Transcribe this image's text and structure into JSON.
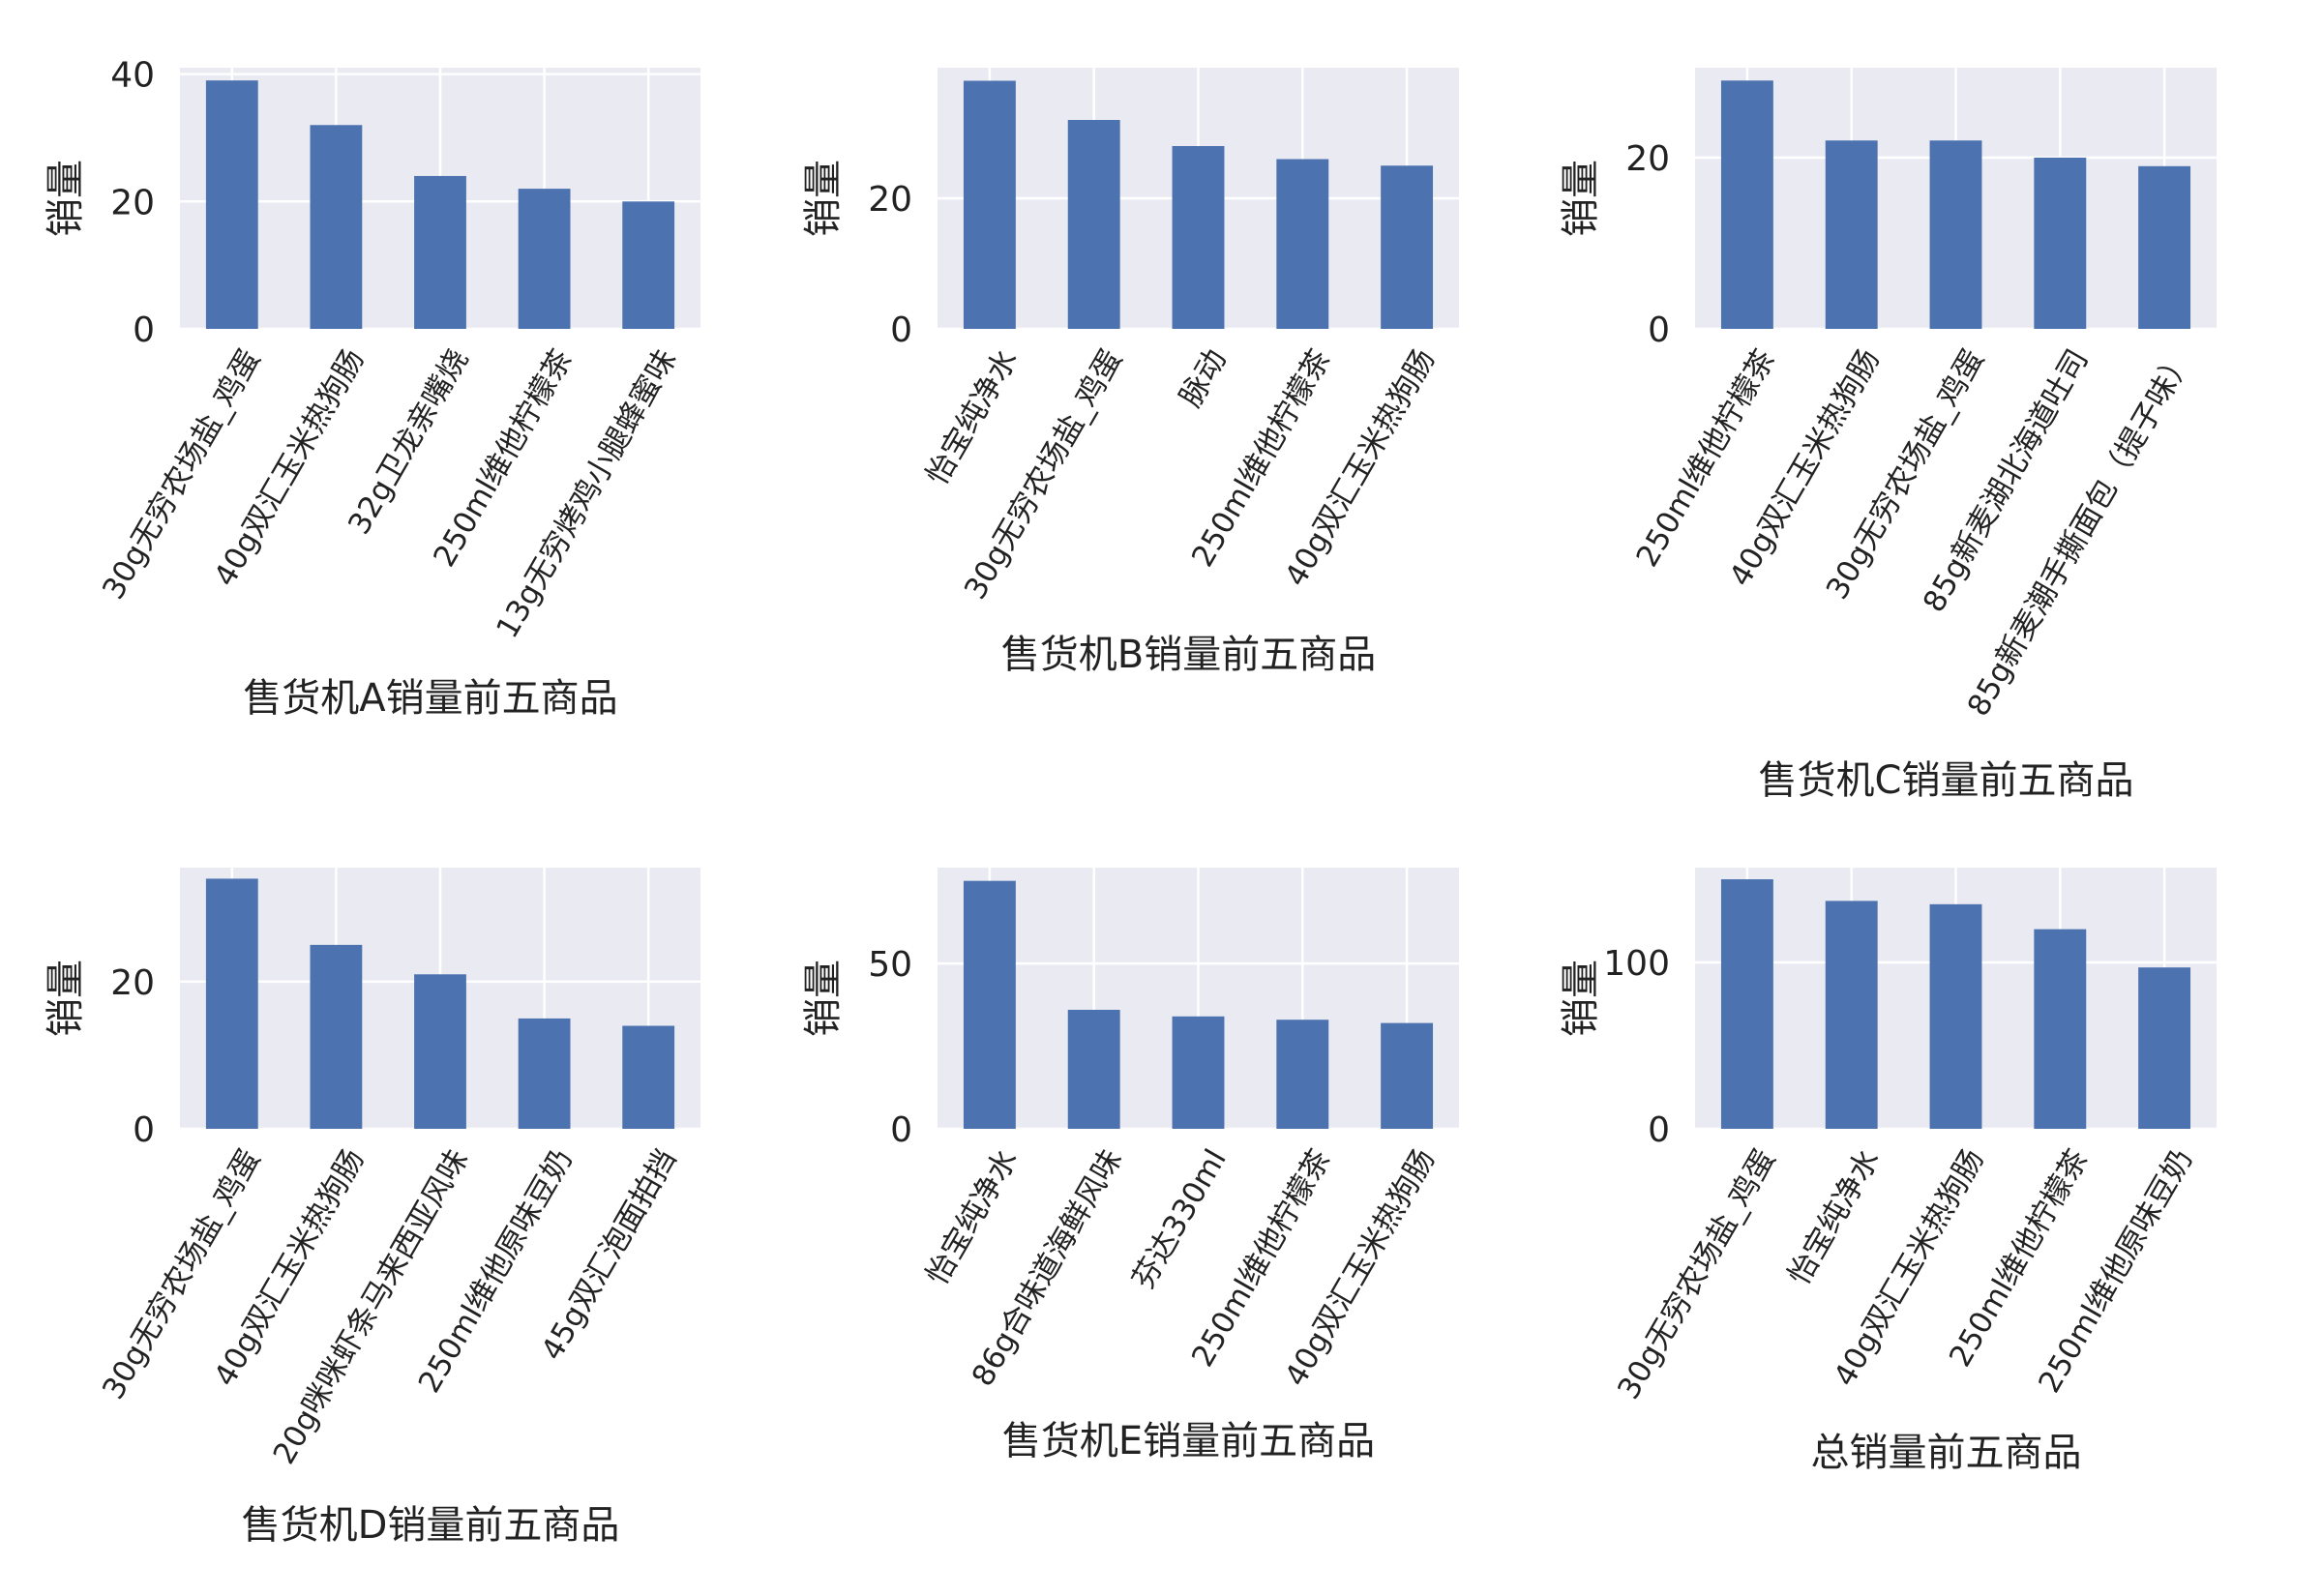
{
  "chart_data": [
    {
      "type": "bar",
      "title": "",
      "xlabel": "售货机A销量前五商品",
      "ylabel": "销量",
      "categories": [
        "30g无穷农场盐_鸡蛋",
        "40g双汇玉米热狗肠",
        "32g卫龙亲嘴烧",
        "250ml维他柠檬茶",
        "13g无穷烤鸡小腿蜂蜜味"
      ],
      "values": [
        39,
        32,
        24,
        22,
        20
      ],
      "ylim": [
        0,
        41
      ],
      "yticks": [
        0,
        20,
        40
      ],
      "grid": true,
      "color": "#4c72b0"
    },
    {
      "type": "bar",
      "title": "",
      "xlabel": "售货机B销量前五商品",
      "ylabel": "销量",
      "categories": [
        "怡宝纯净水",
        "30g无穷农场盐_鸡蛋",
        "脉动",
        "250ml维他柠檬茶",
        "40g双汇玉米热狗肠"
      ],
      "values": [
        38,
        32,
        28,
        26,
        25
      ],
      "ylim": [
        0,
        40
      ],
      "yticks": [
        0,
        20
      ],
      "grid": true,
      "color": "#4c72b0"
    },
    {
      "type": "bar",
      "title": "",
      "xlabel": "售货机C销量前五商品",
      "ylabel": "销量",
      "categories": [
        "250ml维他柠檬茶",
        "40g双汇玉米热狗肠",
        "30g无穷农场盐_鸡蛋",
        "85g新麦湖北海道吐司",
        "85g新麦潮手撕面包（提子味）"
      ],
      "values": [
        29,
        22,
        22,
        20,
        19
      ],
      "ylim": [
        0,
        30.5
      ],
      "yticks": [
        0,
        20
      ],
      "grid": true,
      "color": "#4c72b0"
    },
    {
      "type": "bar",
      "title": "",
      "xlabel": "售货机D销量前五商品",
      "ylabel": "销量",
      "categories": [
        "30g无穷农场盐_鸡蛋",
        "40g双汇玉米热狗肠",
        "20g咪咪虾条马来西亚风味",
        "250ml维他原味豆奶",
        "45g双汇泡面拍挡"
      ],
      "values": [
        34,
        25,
        21,
        15,
        14
      ],
      "ylim": [
        0,
        35.5
      ],
      "yticks": [
        0,
        20
      ],
      "grid": true,
      "color": "#4c72b0"
    },
    {
      "type": "bar",
      "title": "",
      "xlabel": "售货机E销量前五商品",
      "ylabel": "销量",
      "categories": [
        "怡宝纯净水",
        "86g合味道海鲜风味",
        "芬达330ml",
        "250ml维他柠檬茶",
        "40g双汇玉米热狗肠"
      ],
      "values": [
        75,
        36,
        34,
        33,
        32
      ],
      "ylim": [
        0,
        79
      ],
      "yticks": [
        0,
        50
      ],
      "grid": true,
      "color": "#4c72b0"
    },
    {
      "type": "bar",
      "title": "",
      "xlabel": "总销量前五商品",
      "ylabel": "销量",
      "categories": [
        "30g无穷农场盐_鸡蛋",
        "怡宝纯净水",
        "40g双汇玉米热狗肠",
        "250ml维他柠檬茶",
        "250ml维他原味豆奶"
      ],
      "values": [
        150,
        137,
        135,
        120,
        97
      ],
      "ylim": [
        0,
        157
      ],
      "yticks": [
        0,
        100
      ],
      "grid": true,
      "color": "#4c72b0"
    }
  ],
  "style": {
    "axes_background": "#eaeaf2",
    "grid_color": "#ffffff",
    "bar_color": "#4c72b0",
    "text_color": "#222222"
  }
}
